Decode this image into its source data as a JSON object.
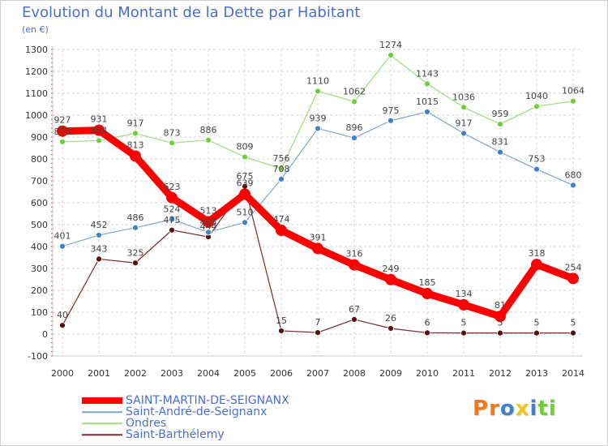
{
  "chart_data": {
    "type": "line",
    "title": "Evolution du Montant de la Dette par Habitant",
    "subtitle": "(en €)",
    "x": [
      "2000",
      "2001",
      "2002",
      "2003",
      "2004",
      "2005",
      "2006",
      "2007",
      "2008",
      "2009",
      "2010",
      "2011",
      "2012",
      "2013",
      "2014"
    ],
    "ylim": [
      -100,
      1300
    ],
    "yticks": [
      -100,
      0,
      100,
      200,
      300,
      400,
      500,
      600,
      700,
      800,
      900,
      1000,
      1100,
      1200,
      1300
    ],
    "grid": true,
    "legend_position": "bottom-left",
    "series": [
      {
        "name": "SAINT-MARTIN-DE-SEIGNANX",
        "color": "#ff0000",
        "marker_color": "#ff0000",
        "values": [
          927,
          931,
          813,
          623,
          513,
          639,
          474,
          391,
          316,
          249,
          185,
          134,
          81,
          318,
          254
        ]
      },
      {
        "name": "Saint-André-de-Seignanx",
        "color": "#7ea6cf",
        "marker_color": "#3f82c8",
        "values": [
          401,
          452,
          486,
          524,
          465,
          510,
          708,
          939,
          896,
          975,
          1015,
          917,
          831,
          753,
          680
        ]
      },
      {
        "name": "Ondres",
        "color": "#9fdc7c",
        "marker_color": "#6fcf3a",
        "values": [
          878,
          884,
          917,
          873,
          886,
          809,
          756,
          1110,
          1062,
          1274,
          1143,
          1036,
          959,
          1040,
          1064
        ]
      },
      {
        "name": "Saint-Barthélemy",
        "color": "#7a2a2a",
        "marker_color": "#5a1010",
        "values": [
          40,
          343,
          325,
          475,
          444,
          675,
          15,
          7,
          67,
          26,
          6,
          5,
          5,
          5,
          5
        ]
      }
    ]
  },
  "logo": {
    "letters": [
      {
        "char": "P",
        "color": "#f07a1a"
      },
      {
        "char": "r",
        "color": "#f07a1a"
      },
      {
        "char": "o",
        "color": "#3f82c8"
      },
      {
        "char": "x",
        "color": "#f2c418"
      },
      {
        "char": "i",
        "color": "#3f82c8"
      },
      {
        "char": "t",
        "color": "#6fcf3a"
      },
      {
        "char": "i",
        "color": "#6fcf3a"
      }
    ]
  }
}
